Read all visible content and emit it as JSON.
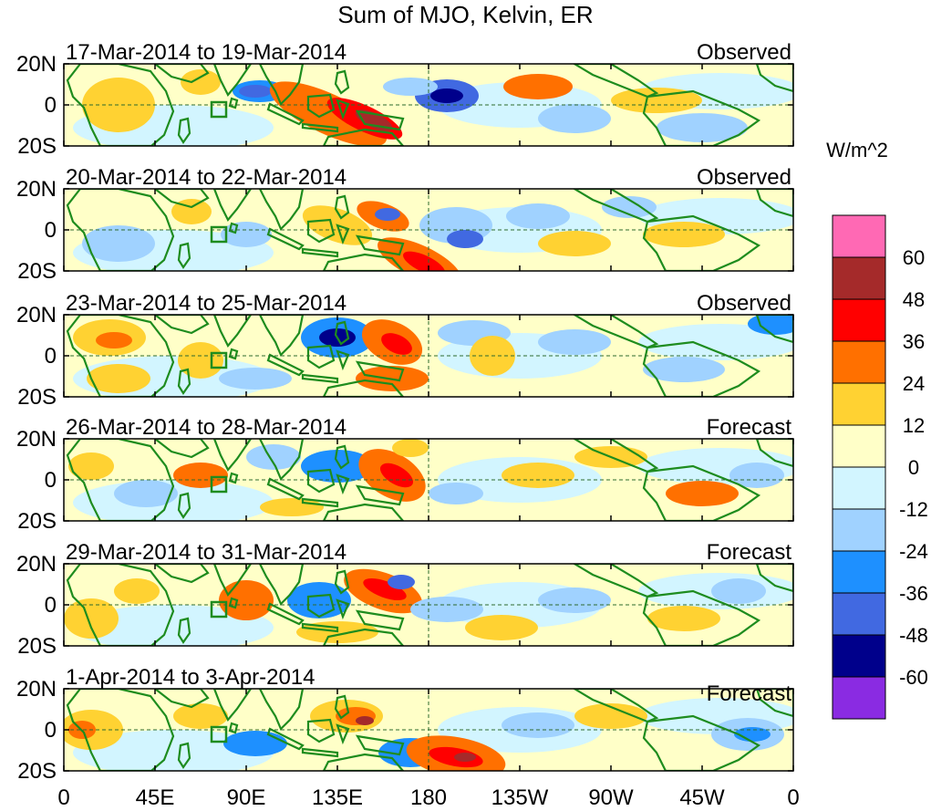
{
  "title": "Sum of MJO, Kelvin, ER",
  "lat_labels": [
    "20N",
    "0",
    "20S"
  ],
  "lon_labels": [
    "0",
    "45E",
    "90E",
    "135E",
    "180",
    "135W",
    "90W",
    "45W",
    "0"
  ],
  "panels": [
    {
      "date_range": "17-Mar-2014 to 19-Mar-2014",
      "status": "Observed"
    },
    {
      "date_range": "20-Mar-2014 to 22-Mar-2014",
      "status": "Observed"
    },
    {
      "date_range": "23-Mar-2014 to 25-Mar-2014",
      "status": "Observed"
    },
    {
      "date_range": "26-Mar-2014 to 28-Mar-2014",
      "status": "Forecast"
    },
    {
      "date_range": "29-Mar-2014 to 31-Mar-2014",
      "status": "Forecast"
    },
    {
      "date_range": "1-Apr-2014 to 3-Apr-2014",
      "status": "Forecast"
    }
  ],
  "colorbar": {
    "units": "W/m^2",
    "levels": [
      "60",
      "48",
      "36",
      "24",
      "12",
      "0",
      "-12",
      "-24",
      "-36",
      "-48",
      "-60"
    ],
    "colors": [
      "#ff69b4",
      "#a52a2a",
      "#ff0000",
      "#ff7000",
      "#ffd232",
      "#ffffc8",
      "#d2f5ff",
      "#a0d2ff",
      "#1e90ff",
      "#4169e1",
      "#00008b",
      "#8a2be2"
    ]
  }
}
